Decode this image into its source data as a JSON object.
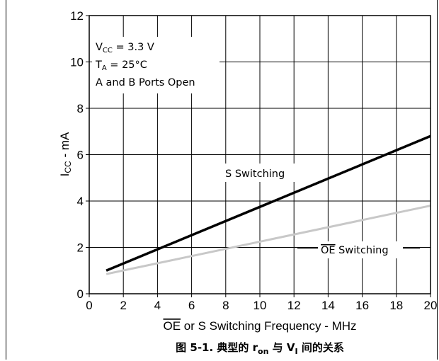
{
  "chart_data": {
    "type": "line",
    "xlabel": {
      "overline": "OE",
      "rest": " or S Switching Frequency - MHz"
    },
    "ylabel": {
      "main": "I",
      "sub": "CC",
      "rest": " - mA"
    },
    "xlim": [
      0,
      20
    ],
    "ylim": [
      0,
      12
    ],
    "x_ticks": [
      "0",
      "2",
      "4",
      "6",
      "8",
      "10",
      "12",
      "14",
      "16",
      "18",
      "20"
    ],
    "y_ticks": [
      "0",
      "2",
      "4",
      "6",
      "8",
      "10",
      "12"
    ],
    "grid": true,
    "conditions": {
      "vcc": {
        "main": "V",
        "sub": "CC",
        "rest": " = 3.3 V"
      },
      "ta": {
        "main": "T",
        "sub": "A",
        "rest": " = 25°C"
      },
      "ports": "A and B Ports Open"
    },
    "series": [
      {
        "name": "S Switching",
        "label_prefix": "",
        "label_suffix": "S Switching",
        "color": "#000000",
        "x": [
          1,
          20
        ],
        "y": [
          1.0,
          6.8
        ]
      },
      {
        "name": "OE Switching",
        "label_prefix": "OE",
        "label_suffix": " Switching",
        "color": "#c8c8c8",
        "x": [
          1,
          20
        ],
        "y": [
          0.85,
          3.8
        ]
      }
    ],
    "caption": {
      "prefix": "图 5-1. 典型的 r",
      "ron_sub": "on",
      "mid": " 与 V",
      "vi_sub": "I",
      "suffix": " 间的关系"
    }
  }
}
